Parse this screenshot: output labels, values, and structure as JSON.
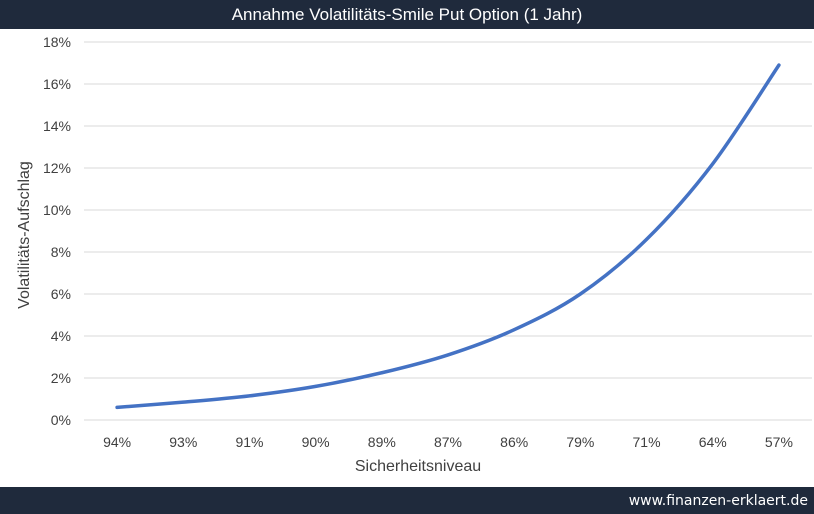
{
  "chart_data": {
    "type": "line",
    "title": "Annahme Volatilitäts-Smile Put Option (1 Jahr)",
    "xlabel": "Sicherheitsniveau",
    "ylabel": "Volatilitäts-Aufschlag",
    "categories": [
      "94%",
      "93%",
      "91%",
      "90%",
      "89%",
      "87%",
      "86%",
      "79%",
      "71%",
      "64%",
      "57%"
    ],
    "yticks": [
      "0%",
      "2%",
      "4%",
      "6%",
      "8%",
      "10%",
      "12%",
      "14%",
      "16%",
      "18%"
    ],
    "ylim": [
      0,
      18
    ],
    "grid": true,
    "legend": "none",
    "series": [
      {
        "color": "#4472c4",
        "values": [
          0.6,
          0.85,
          1.15,
          1.6,
          2.25,
          3.1,
          4.3,
          6.0,
          8.6,
          12.2,
          16.9
        ]
      }
    ]
  },
  "footer": {
    "site": "www.finanzen-erklaert.de"
  },
  "colors": {
    "bar_background": "#1f2a3c",
    "line": "#4472c4",
    "grid": "#d9d9d9"
  }
}
